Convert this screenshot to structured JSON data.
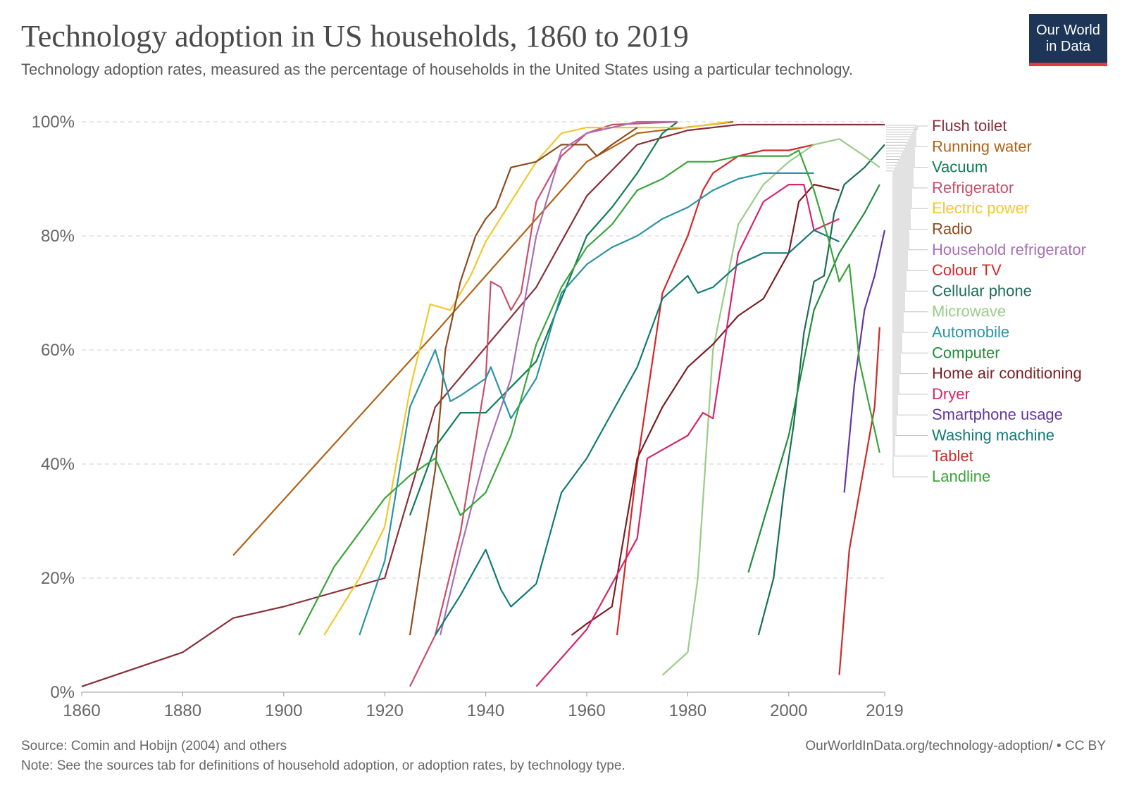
{
  "header": {
    "title": "Technology adoption in US households, 1860 to 2019",
    "subtitle": "Technology adoption rates, measured as the percentage of households in the United States using a particular technology.",
    "logo_line1": "Our World",
    "logo_line2": "in Data"
  },
  "footer": {
    "source": "Source: Comin and Hobijn (2004) and others",
    "url": "OurWorldInData.org/technology-adoption/ • CC BY",
    "note": "Note: See the sources tab for definitions of household adoption, or adoption rates, by technology type."
  },
  "colors": {
    "logo_bg": "#1d3557",
    "logo_accent": "#e63946",
    "grid": "#d0d0d0"
  },
  "chart_data": {
    "type": "line",
    "title": "Technology adoption in US households, 1860 to 2019",
    "xlabel": "",
    "ylabel": "",
    "xlim": [
      1860,
      2019
    ],
    "ylim": [
      0,
      100
    ],
    "x_ticks": [
      1860,
      1880,
      1900,
      1920,
      1940,
      1960,
      1980,
      2000,
      2019
    ],
    "x_tick_labels": [
      "1860",
      "1880",
      "1900",
      "1920",
      "1940",
      "1960",
      "1980",
      "2000",
      "2019"
    ],
    "y_ticks": [
      0,
      20,
      40,
      60,
      80,
      100
    ],
    "y_tick_labels": [
      "0%",
      "20%",
      "40%",
      "60%",
      "80%",
      "100%"
    ],
    "grid": "horizontal dashed",
    "legend_position": "right",
    "series": [
      {
        "name": "Flush toilet",
        "color": "#883039",
        "label_y": 98.6,
        "points": [
          [
            1860,
            1
          ],
          [
            1880,
            7
          ],
          [
            1890,
            13
          ],
          [
            1900,
            15
          ],
          [
            1920,
            20
          ],
          [
            1930,
            50
          ],
          [
            1950,
            71
          ],
          [
            1960,
            87
          ],
          [
            1970,
            96
          ],
          [
            1980,
            98.5
          ],
          [
            1990,
            99.5
          ],
          [
            2000,
            99.5
          ],
          [
            2010,
            99.5
          ],
          [
            2019,
            99.5
          ]
        ]
      },
      {
        "name": "Running water",
        "color": "#b16214",
        "label_y": 99.4,
        "points": [
          [
            1890,
            24
          ],
          [
            1930,
            63
          ],
          [
            1960,
            93
          ],
          [
            1970,
            98
          ],
          [
            1989,
            100
          ]
        ]
      },
      {
        "name": "Vacuum",
        "color": "#0c7d52",
        "label_y": 99.0,
        "points": [
          [
            1925,
            31
          ],
          [
            1930,
            43
          ],
          [
            1935,
            49
          ],
          [
            1940,
            49
          ],
          [
            1950,
            58
          ],
          [
            1960,
            80
          ],
          [
            1965,
            85
          ],
          [
            1970,
            91
          ],
          [
            1975,
            98
          ],
          [
            1978,
            100
          ]
        ]
      },
      {
        "name": "Refrigerator",
        "color": "#ca4e6a",
        "label_y": 98.2,
        "points": [
          [
            1925,
            1
          ],
          [
            1930,
            10
          ],
          [
            1935,
            28
          ],
          [
            1940,
            55
          ],
          [
            1941,
            72
          ],
          [
            1943,
            71
          ],
          [
            1945,
            67
          ],
          [
            1947,
            70
          ],
          [
            1950,
            86
          ],
          [
            1955,
            94
          ],
          [
            1960,
            98
          ],
          [
            1965,
            99.5
          ],
          [
            1978,
            100
          ]
        ]
      },
      {
        "name": "Electric power",
        "color": "#f2c82b",
        "label_y": 97.8,
        "points": [
          [
            1908,
            10
          ],
          [
            1915,
            20
          ],
          [
            1920,
            29
          ],
          [
            1925,
            53
          ],
          [
            1929,
            68
          ],
          [
            1933,
            67
          ],
          [
            1937,
            73
          ],
          [
            1940,
            79
          ],
          [
            1950,
            93
          ],
          [
            1955,
            98
          ],
          [
            1960,
            99
          ],
          [
            1970,
            99
          ],
          [
            1980,
            99
          ],
          [
            1988,
            100
          ]
        ]
      },
      {
        "name": "Radio",
        "color": "#8e4b1f",
        "label_y": 97.4,
        "points": [
          [
            1925,
            10
          ],
          [
            1930,
            39
          ],
          [
            1932,
            60
          ],
          [
            1935,
            72
          ],
          [
            1938,
            80
          ],
          [
            1940,
            83
          ],
          [
            1942,
            85
          ],
          [
            1945,
            92
          ],
          [
            1950,
            93
          ],
          [
            1955,
            96
          ],
          [
            1960,
            96
          ],
          [
            1962,
            94
          ],
          [
            1965,
            96
          ],
          [
            1970,
            99
          ]
        ]
      },
      {
        "name": "Household refrigerator",
        "color": "#a970b4",
        "label_y": 96.9,
        "points": [
          [
            1931,
            10
          ],
          [
            1935,
            25
          ],
          [
            1940,
            42
          ],
          [
            1945,
            55
          ],
          [
            1950,
            80
          ],
          [
            1955,
            95
          ],
          [
            1960,
            98
          ],
          [
            1965,
            99
          ],
          [
            1970,
            100
          ],
          [
            1978,
            100
          ]
        ]
      },
      {
        "name": "Colour TV",
        "color": "#d62728",
        "label_y": 96.4,
        "points": [
          [
            1966,
            10
          ],
          [
            1970,
            40
          ],
          [
            1975,
            70
          ],
          [
            1980,
            80
          ],
          [
            1983,
            88
          ],
          [
            1985,
            91
          ],
          [
            1990,
            94
          ],
          [
            1995,
            95
          ],
          [
            2000,
            95
          ],
          [
            2005,
            96
          ]
        ]
      },
      {
        "name": "Cellular phone",
        "color": "#1b6e57",
        "label_y": 95.9,
        "points": [
          [
            1994,
            10
          ],
          [
            1997,
            20
          ],
          [
            1999,
            35
          ],
          [
            2001,
            47
          ],
          [
            2003,
            63
          ],
          [
            2005,
            72
          ],
          [
            2007,
            73
          ],
          [
            2009,
            84
          ],
          [
            2011,
            89
          ],
          [
            2015,
            92
          ],
          [
            2019,
            96
          ]
        ]
      },
      {
        "name": "Microwave",
        "color": "#99cc88",
        "label_y": 95.4,
        "points": [
          [
            1975,
            3
          ],
          [
            1980,
            7
          ],
          [
            1982,
            20
          ],
          [
            1985,
            60
          ],
          [
            1990,
            82
          ],
          [
            1995,
            89
          ],
          [
            2000,
            93
          ],
          [
            2005,
            96
          ],
          [
            2010,
            97
          ],
          [
            2015,
            94
          ],
          [
            2018,
            92
          ]
        ]
      },
      {
        "name": "Automobile",
        "color": "#2a94a3",
        "label_y": 94.9,
        "points": [
          [
            1915,
            10
          ],
          [
            1920,
            23
          ],
          [
            1925,
            50
          ],
          [
            1930,
            60
          ],
          [
            1933,
            51
          ],
          [
            1935,
            52
          ],
          [
            1940,
            55
          ],
          [
            1941,
            57
          ],
          [
            1945,
            48
          ],
          [
            1950,
            55
          ],
          [
            1955,
            70
          ],
          [
            1960,
            75
          ],
          [
            1965,
            78
          ],
          [
            1970,
            80
          ],
          [
            1975,
            83
          ],
          [
            1980,
            85
          ],
          [
            1985,
            88
          ],
          [
            1990,
            90
          ],
          [
            1995,
            91
          ],
          [
            2000,
            91
          ],
          [
            2005,
            91
          ]
        ]
      },
      {
        "name": "Computer",
        "color": "#1f8e3a",
        "label_y": 94.4,
        "points": [
          [
            1992,
            21
          ],
          [
            2000,
            45
          ],
          [
            2005,
            67
          ],
          [
            2010,
            77
          ],
          [
            2015,
            84
          ],
          [
            2018,
            89
          ]
        ]
      },
      {
        "name": "Home air conditioning",
        "color": "#7a1e23",
        "label_y": 93.9,
        "points": [
          [
            1957,
            10
          ],
          [
            1960,
            12
          ],
          [
            1965,
            15
          ],
          [
            1970,
            41
          ],
          [
            1975,
            50
          ],
          [
            1980,
            57
          ],
          [
            1985,
            61
          ],
          [
            1990,
            66
          ],
          [
            1995,
            69
          ],
          [
            2000,
            77
          ],
          [
            2002,
            86
          ],
          [
            2005,
            89
          ],
          [
            2010,
            88
          ]
        ]
      },
      {
        "name": "Dryer",
        "color": "#d6256a",
        "label_y": 93.4,
        "points": [
          [
            1950,
            1
          ],
          [
            1960,
            11
          ],
          [
            1970,
            27
          ],
          [
            1972,
            41
          ],
          [
            1980,
            45
          ],
          [
            1983,
            49
          ],
          [
            1985,
            48
          ],
          [
            1990,
            77
          ],
          [
            1995,
            86
          ],
          [
            2000,
            89
          ],
          [
            2003,
            89
          ],
          [
            2005,
            81
          ],
          [
            2010,
            83
          ]
        ]
      },
      {
        "name": "Smartphone usage",
        "color": "#6237a3",
        "label_y": 92.9,
        "points": [
          [
            2011,
            35
          ],
          [
            2013,
            54
          ],
          [
            2015,
            67
          ],
          [
            2017,
            73
          ],
          [
            2019,
            81
          ]
        ]
      },
      {
        "name": "Washing machine",
        "color": "#117a78",
        "label_y": 92.4,
        "points": [
          [
            1930,
            10
          ],
          [
            1935,
            17
          ],
          [
            1940,
            25
          ],
          [
            1943,
            18
          ],
          [
            1945,
            15
          ],
          [
            1950,
            19
          ],
          [
            1955,
            35
          ],
          [
            1960,
            41
          ],
          [
            1965,
            49
          ],
          [
            1970,
            57
          ],
          [
            1975,
            69
          ],
          [
            1980,
            73
          ],
          [
            1982,
            70
          ],
          [
            1985,
            71
          ],
          [
            1990,
            75
          ],
          [
            1995,
            77
          ],
          [
            2000,
            77
          ],
          [
            2005,
            81
          ],
          [
            2010,
            79
          ]
        ]
      },
      {
        "name": "Tablet",
        "color": "#cc2b2b",
        "label_y": 91.9,
        "points": [
          [
            2010,
            3
          ],
          [
            2012,
            25
          ],
          [
            2015,
            40
          ],
          [
            2017,
            50
          ],
          [
            2018,
            64
          ]
        ]
      },
      {
        "name": "Landline",
        "color": "#3aa53a",
        "label_y": 91.4,
        "points": [
          [
            1903,
            10
          ],
          [
            1910,
            22
          ],
          [
            1920,
            34
          ],
          [
            1925,
            38
          ],
          [
            1930,
            41
          ],
          [
            1935,
            31
          ],
          [
            1940,
            35
          ],
          [
            1945,
            45
          ],
          [
            1950,
            61
          ],
          [
            1955,
            71
          ],
          [
            1960,
            78
          ],
          [
            1965,
            82
          ],
          [
            1970,
            88
          ],
          [
            1975,
            90
          ],
          [
            1980,
            93
          ],
          [
            1985,
            93
          ],
          [
            1990,
            94
          ],
          [
            1995,
            94
          ],
          [
            2000,
            94
          ],
          [
            2002,
            95
          ],
          [
            2005,
            88
          ],
          [
            2008,
            79
          ],
          [
            2010,
            72
          ],
          [
            2012,
            75
          ],
          [
            2014,
            58
          ],
          [
            2018,
            42
          ]
        ]
      }
    ]
  }
}
